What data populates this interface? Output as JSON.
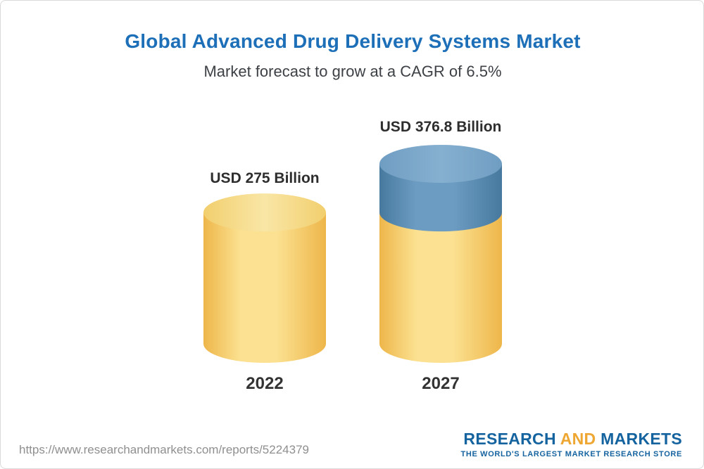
{
  "header": {
    "title": "Global Advanced Drug Delivery Systems Market",
    "subtitle": "Market forecast to grow at a CAGR of 6.5%"
  },
  "chart_data": {
    "type": "bar",
    "subtype": "3d-cylinder-stacked",
    "title": "Global Advanced Drug Delivery Systems Market",
    "subtitle": "Market forecast to grow at a CAGR of 6.5%",
    "unit": "USD Billion",
    "cagr": "6.5%",
    "categories": [
      "2022",
      "2027"
    ],
    "values": [
      275,
      376.8
    ],
    "bars": [
      {
        "category": "2022",
        "total": 275,
        "label": "USD 275 Billion",
        "segments": [
          {
            "value": 275,
            "color_key": "gold"
          }
        ]
      },
      {
        "category": "2027",
        "total": 376.8,
        "label": "USD 376.8 Billion",
        "segments": [
          {
            "value": 275,
            "color_key": "gold"
          },
          {
            "value": 101.8,
            "color_key": "blue"
          }
        ]
      }
    ],
    "colors": {
      "gold": {
        "edge": "#eeb64a",
        "mid": "#fbe191",
        "top_edge": "#f2cf6e",
        "top_mid": "#f9e6a6"
      },
      "blue": {
        "edge": "#47799f",
        "mid": "#6d9cc2",
        "top_edge": "#6f9dc2",
        "top_mid": "#86b0d0"
      }
    },
    "axis": {
      "x_visible": false,
      "y_visible": false,
      "grid": false
    },
    "legend_position": "none"
  },
  "footer": {
    "url": "https://www.researchandmarkets.com/reports/5224379",
    "logo": {
      "part1": "RESEARCH",
      "part2": "AND",
      "part3": "MARKETS",
      "tagline": "THE WORLD'S LARGEST MARKET RESEARCH STORE"
    }
  },
  "accent_colors": {
    "title_blue": "#1d6fb8",
    "logo_blue": "#15639f",
    "logo_gold": "#efa733"
  }
}
